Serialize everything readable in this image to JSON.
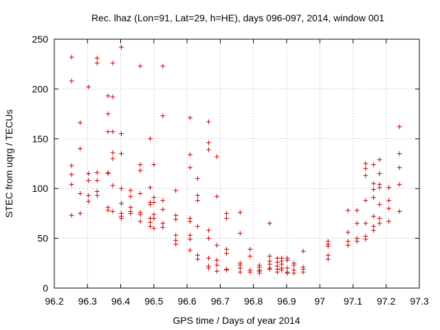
{
  "chart_data": {
    "type": "scatter",
    "title": "Rec. lhaz (Lon=91, Lat=29, h=HE), days 096-097, 2014, window 001",
    "xlabel": "GPS time / Days of year 2014",
    "ylabel": "STEC from uqrg / TECUs",
    "xlim": [
      96.2,
      97.3
    ],
    "ylim": [
      0,
      250
    ],
    "x_ticks": [
      96.2,
      96.3,
      96.4,
      96.5,
      96.6,
      96.7,
      96.8,
      96.9,
      97.0,
      97.1,
      97.2,
      97.3
    ],
    "x_tick_labels": [
      "96.2",
      "96.3",
      "96.4",
      "96.5",
      "96.6",
      "96.7",
      "96.8",
      "96.9",
      "97",
      "97.1",
      "97.2",
      "97.3"
    ],
    "y_ticks": [
      0,
      50,
      100,
      150,
      200,
      250
    ],
    "y_tick_labels": [
      "0",
      "50",
      "100",
      "150",
      "200",
      "250"
    ],
    "grid": true,
    "marker": "+",
    "color": "#cc0000",
    "series": [
      {
        "points": [
          [
            96.252,
            232
          ],
          [
            96.252,
            208
          ],
          [
            96.252,
            123
          ],
          [
            96.252,
            114
          ],
          [
            96.252,
            104
          ],
          [
            96.252,
            73
          ],
          [
            96.278,
            166
          ],
          [
            96.278,
            140
          ],
          [
            96.278,
            95
          ],
          [
            96.278,
            75
          ],
          [
            96.303,
            202
          ],
          [
            96.303,
            115
          ],
          [
            96.303,
            108
          ],
          [
            96.303,
            93
          ],
          [
            96.303,
            87
          ],
          [
            96.329,
            231
          ],
          [
            96.329,
            226
          ],
          [
            96.329,
            116
          ],
          [
            96.329,
            108
          ],
          [
            96.329,
            97
          ],
          [
            96.329,
            93
          ],
          [
            96.362,
            193
          ],
          [
            96.362,
            175
          ],
          [
            96.362,
            157
          ],
          [
            96.362,
            116
          ],
          [
            96.362,
            115
          ],
          [
            96.362,
            81
          ],
          [
            96.362,
            78
          ],
          [
            96.376,
            226
          ],
          [
            96.376,
            192
          ],
          [
            96.376,
            157
          ],
          [
            96.376,
            136
          ],
          [
            96.376,
            130
          ],
          [
            96.376,
            103
          ],
          [
            96.376,
            77
          ],
          [
            96.402,
            242
          ],
          [
            96.402,
            155
          ],
          [
            96.402,
            135
          ],
          [
            96.402,
            100
          ],
          [
            96.402,
            85
          ],
          [
            96.402,
            75
          ],
          [
            96.402,
            72
          ],
          [
            96.402,
            70
          ],
          [
            96.43,
            98
          ],
          [
            96.43,
            92
          ],
          [
            96.43,
            81
          ],
          [
            96.43,
            77
          ],
          [
            96.43,
            75
          ],
          [
            96.459,
            223
          ],
          [
            96.459,
            124
          ],
          [
            96.459,
            118
          ],
          [
            96.459,
            95
          ],
          [
            96.459,
            76
          ],
          [
            96.459,
            74
          ],
          [
            96.459,
            67
          ],
          [
            96.489,
            150
          ],
          [
            96.489,
            101
          ],
          [
            96.489,
            86
          ],
          [
            96.489,
            84
          ],
          [
            96.489,
            70
          ],
          [
            96.489,
            66
          ],
          [
            96.489,
            62
          ],
          [
            96.5,
            124
          ],
          [
            96.5,
            91
          ],
          [
            96.5,
            86
          ],
          [
            96.5,
            74
          ],
          [
            96.5,
            70
          ],
          [
            96.5,
            60
          ],
          [
            96.527,
            223
          ],
          [
            96.527,
            173
          ],
          [
            96.527,
            88
          ],
          [
            96.527,
            79
          ],
          [
            96.527,
            65
          ],
          [
            96.527,
            61
          ],
          [
            96.566,
            98
          ],
          [
            96.566,
            73
          ],
          [
            96.566,
            69
          ],
          [
            96.566,
            53
          ],
          [
            96.566,
            48
          ],
          [
            96.566,
            44
          ],
          [
            96.609,
            171
          ],
          [
            96.609,
            134
          ],
          [
            96.609,
            121
          ],
          [
            96.609,
            70
          ],
          [
            96.609,
            67
          ],
          [
            96.609,
            53
          ],
          [
            96.609,
            49
          ],
          [
            96.609,
            38
          ],
          [
            96.632,
            110
          ],
          [
            96.632,
            93
          ],
          [
            96.632,
            88
          ],
          [
            96.632,
            62
          ],
          [
            96.632,
            33
          ],
          [
            96.632,
            29
          ],
          [
            96.665,
            167
          ],
          [
            96.665,
            146
          ],
          [
            96.665,
            139
          ],
          [
            96.665,
            58
          ],
          [
            96.665,
            50
          ],
          [
            96.665,
            30
          ],
          [
            96.665,
            22
          ],
          [
            96.665,
            20
          ],
          [
            96.69,
            132
          ],
          [
            96.69,
            92
          ],
          [
            96.69,
            43
          ],
          [
            96.69,
            28
          ],
          [
            96.69,
            23
          ],
          [
            96.69,
            17
          ],
          [
            96.719,
            75
          ],
          [
            96.719,
            70
          ],
          [
            96.719,
            39
          ],
          [
            96.719,
            35
          ],
          [
            96.719,
            19
          ],
          [
            96.719,
            18
          ],
          [
            96.76,
            76
          ],
          [
            96.76,
            55
          ],
          [
            96.76,
            25
          ],
          [
            96.76,
            23
          ],
          [
            96.76,
            20
          ],
          [
            96.76,
            16
          ],
          [
            96.79,
            39
          ],
          [
            96.79,
            32
          ],
          [
            96.79,
            18
          ],
          [
            96.79,
            16
          ],
          [
            96.818,
            23
          ],
          [
            96.818,
            21
          ],
          [
            96.818,
            18
          ],
          [
            96.818,
            17
          ],
          [
            96.818,
            15
          ],
          [
            96.849,
            65
          ],
          [
            96.849,
            32
          ],
          [
            96.849,
            27
          ],
          [
            96.849,
            24
          ],
          [
            96.849,
            20
          ],
          [
            96.849,
            19
          ],
          [
            96.872,
            30
          ],
          [
            96.872,
            26
          ],
          [
            96.872,
            22
          ],
          [
            96.872,
            19
          ],
          [
            96.872,
            16
          ],
          [
            96.885,
            30
          ],
          [
            96.885,
            27
          ],
          [
            96.885,
            24
          ],
          [
            96.885,
            20
          ],
          [
            96.885,
            18
          ],
          [
            96.902,
            30
          ],
          [
            96.902,
            28
          ],
          [
            96.902,
            20
          ],
          [
            96.902,
            16
          ],
          [
            96.902,
            15
          ],
          [
            96.922,
            25
          ],
          [
            96.922,
            23
          ],
          [
            96.922,
            18
          ],
          [
            96.922,
            15
          ],
          [
            96.95,
            37
          ],
          [
            96.95,
            21
          ],
          [
            96.95,
            19
          ],
          [
            96.95,
            16
          ],
          [
            97.025,
            47
          ],
          [
            97.025,
            44
          ],
          [
            97.025,
            42
          ],
          [
            97.025,
            33
          ],
          [
            97.025,
            29
          ],
          [
            97.085,
            78
          ],
          [
            97.085,
            56
          ],
          [
            97.085,
            47
          ],
          [
            97.085,
            43
          ],
          [
            97.112,
            78
          ],
          [
            97.112,
            65
          ],
          [
            97.112,
            50
          ],
          [
            97.112,
            47
          ],
          [
            97.138,
            125
          ],
          [
            97.138,
            120
          ],
          [
            97.138,
            113
          ],
          [
            97.138,
            88
          ],
          [
            97.138,
            65
          ],
          [
            97.138,
            52
          ],
          [
            97.138,
            49
          ],
          [
            97.162,
            124
          ],
          [
            97.162,
            105
          ],
          [
            97.162,
            99
          ],
          [
            97.162,
            91
          ],
          [
            97.162,
            72
          ],
          [
            97.162,
            62
          ],
          [
            97.162,
            58
          ],
          [
            97.18,
            129
          ],
          [
            97.18,
            115
          ],
          [
            97.18,
            104
          ],
          [
            97.18,
            101
          ],
          [
            97.18,
            84
          ],
          [
            97.18,
            70
          ],
          [
            97.18,
            65
          ],
          [
            97.208,
            101
          ],
          [
            97.208,
            88
          ],
          [
            97.208,
            80
          ],
          [
            97.208,
            67
          ],
          [
            97.24,
            162
          ],
          [
            97.24,
            135
          ],
          [
            97.24,
            121
          ],
          [
            97.24,
            104
          ],
          [
            97.24,
            77
          ]
        ]
      }
    ]
  }
}
